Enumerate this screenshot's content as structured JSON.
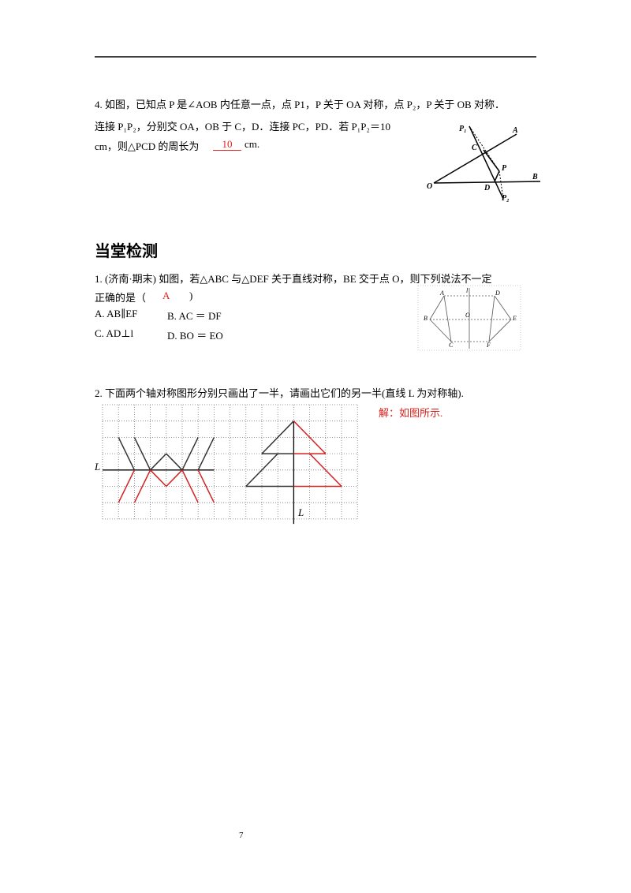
{
  "q4": {
    "lines": [
      "4. 如图，已知点 P 是∠AOB 内任意一点，点 P1，P 关于 OA 对称，点 P₂，P 关于 OB 对称．",
      "连接 P₁P₂，分别交 OA，OB 于 C，D．连接 PC，PD．若 P₁P₂＝10",
      "cm，则△PCD 的周长为"
    ],
    "answer": "10",
    "unit": "cm.",
    "figure_labels": [
      "P₁",
      "A",
      "C",
      "P",
      "B",
      "O",
      "D",
      "P₂"
    ]
  },
  "section_title": "当堂检测",
  "q1": {
    "lines": [
      "1. (济南·期末) 如图，若△ABC 与△DEF 关于直线对称，BE 交于点 O，则下列说法不一定",
      "正确的是（"
    ],
    "answer": "A",
    "close": ")",
    "options": [
      "A.  AB∥EF",
      "B.  AC ＝ DF",
      "C.  AD⊥l",
      "D.  BO ＝ EO"
    ],
    "figure_labels": [
      "A",
      "l",
      "D",
      "B",
      "O",
      "E",
      "C",
      "F"
    ]
  },
  "q2": {
    "text": "2. 下面两个轴对称图形分别只画出了一半，请画出它们的另一半(直线 L 为对称轴).",
    "solution": "解：如图所示.",
    "axis_labels": [
      "L",
      "L"
    ]
  },
  "page_number": "7"
}
